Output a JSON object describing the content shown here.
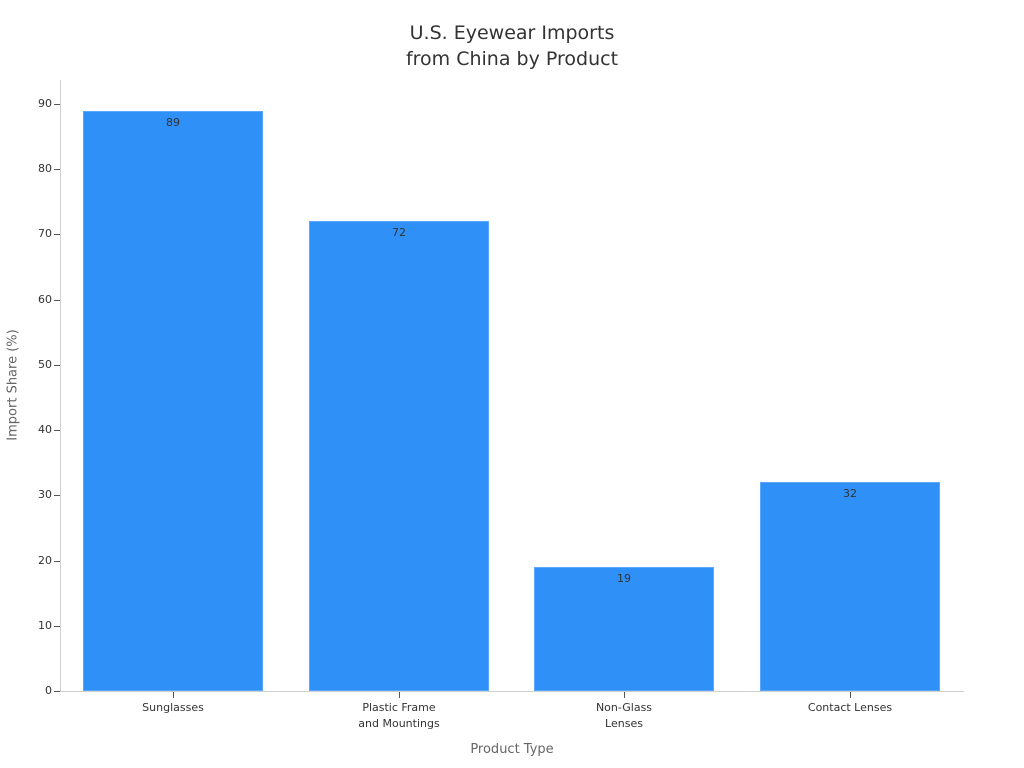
{
  "chart_data": {
    "type": "bar",
    "title": "U.S. Eyewear Imports from China by Product",
    "title_lines": [
      "U.S. Eyewear Imports",
      "from China by Product"
    ],
    "categories": [
      "Sunglasses",
      "Plastic Frame and Mountings",
      "Non-Glass Lenses",
      "Contact Lenses"
    ],
    "category_lines": [
      [
        "Sunglasses"
      ],
      [
        "Plastic Frame",
        "and Mountings"
      ],
      [
        "Non-Glass",
        "Lenses"
      ],
      [
        "Contact Lenses"
      ]
    ],
    "values": [
      89,
      72,
      19,
      32
    ],
    "data_labels": [
      "89",
      "72",
      "19",
      "32"
    ],
    "xlabel": "Product Type",
    "ylabel": "Import Share (%)",
    "ylim": [
      0,
      93
    ],
    "yticks": [
      0,
      10,
      20,
      30,
      40,
      50,
      60,
      70,
      80,
      90
    ],
    "grid": false,
    "legend": null,
    "bar_color": "#2f91f8"
  }
}
